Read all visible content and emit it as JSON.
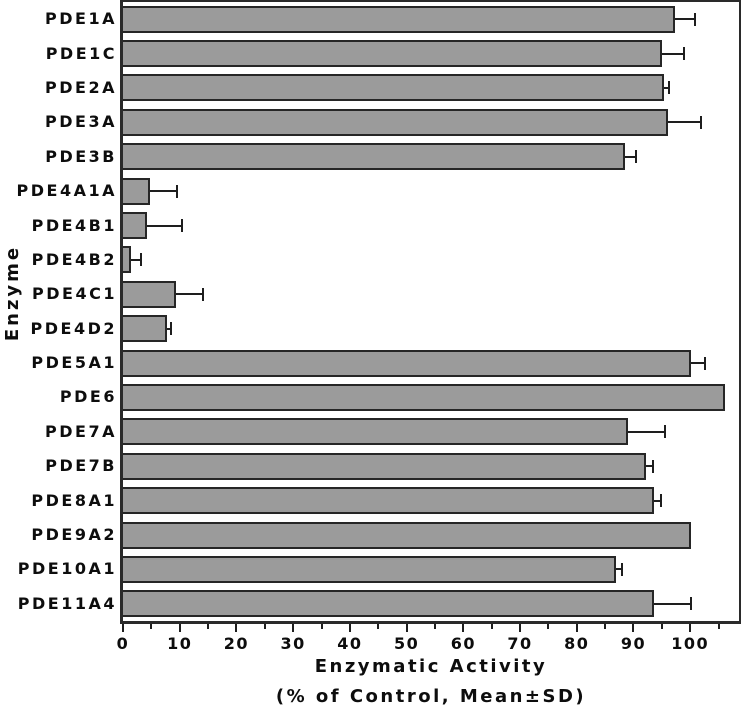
{
  "figure": {
    "y_axis_title": "Enzyme",
    "x_axis_title_line1": "Enzymatic Activity",
    "x_axis_title_line2": "(% of Control, Mean±SD)"
  },
  "chart_data": {
    "type": "bar",
    "orientation": "horizontal",
    "title": "",
    "xlabel": "Enzymatic Activity (% of Control, Mean±SD)",
    "ylabel": "Enzyme",
    "xlim": [
      0,
      108.6
    ],
    "x_major_ticks": [
      0,
      10,
      20,
      30,
      40,
      50,
      60,
      70,
      80,
      90,
      100
    ],
    "x_minor_ticks": [
      5,
      15,
      25,
      35,
      45,
      55,
      65,
      75,
      85,
      95,
      105
    ],
    "grid": false,
    "legend": "none",
    "error_bars": "mean_plus_sd_upper_only",
    "bar_color": "#9b9b9b",
    "bar_border_color": "#262626",
    "categories": [
      "PDE1A",
      "PDE1C",
      "PDE2A",
      "PDE3A",
      "PDE3B",
      "PDE4A1A",
      "PDE4B1",
      "PDE4B2",
      "PDE4C1",
      "PDE4D2",
      "PDE5A1",
      "PDE6",
      "PDE7A",
      "PDE7B",
      "PDE8A1",
      "PDE9A2",
      "PDE10A1",
      "PDE11A4"
    ],
    "values": [
      97.3,
      95.1,
      95.4,
      96.0,
      88.5,
      4.7,
      4.2,
      1.4,
      9.4,
      7.8,
      100.1,
      106.2,
      89.0,
      92.2,
      93.6,
      100.2,
      86.9,
      93.6
    ],
    "sd": [
      3.7,
      4.0,
      1.0,
      6.1,
      2.2,
      5.0,
      6.4,
      2.0,
      4.8,
      0.8,
      2.6,
      0,
      6.8,
      1.5,
      1.4,
      0,
      1.2,
      6.8
    ]
  }
}
